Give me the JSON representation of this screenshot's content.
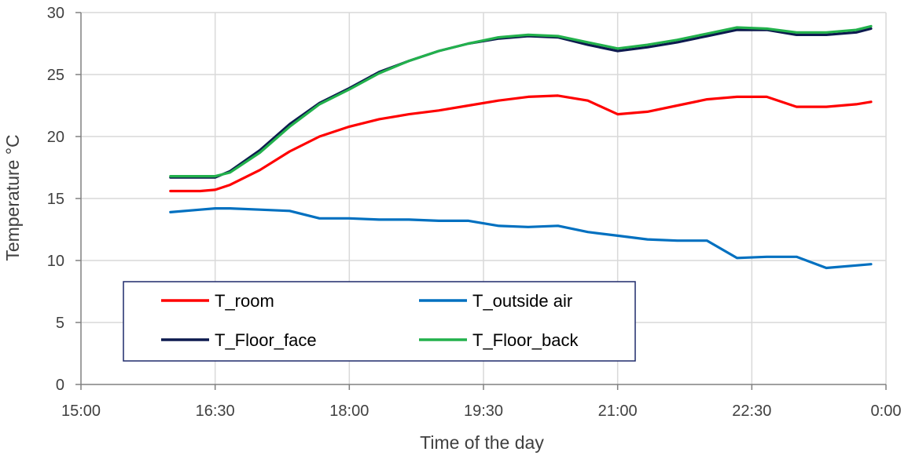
{
  "chart_data": {
    "type": "line",
    "xlabel": "Time of the day",
    "ylabel": "Temperature °C",
    "x_ticks": [
      "15:00",
      "16:30",
      "18:00",
      "19:30",
      "21:00",
      "22:30",
      "0:00"
    ],
    "x_tick_hours": [
      15,
      16.5,
      18,
      19.5,
      21,
      22.5,
      24
    ],
    "xlim": [
      "15:00",
      "0:00"
    ],
    "ylim": [
      0,
      30
    ],
    "y_ticks": [
      0,
      5,
      10,
      15,
      20,
      25,
      30
    ],
    "grid": true,
    "legend": {
      "placement": "bottom-left",
      "columns": 2
    },
    "x": [
      "16:00",
      "16:20",
      "16:30",
      "16:40",
      "17:00",
      "17:20",
      "17:40",
      "18:00",
      "18:20",
      "18:40",
      "19:00",
      "19:20",
      "19:40",
      "20:00",
      "20:20",
      "20:40",
      "21:00",
      "21:20",
      "21:40",
      "22:00",
      "22:20",
      "22:40",
      "23:00",
      "23:20",
      "23:40",
      "23:50"
    ],
    "series": [
      {
        "name": "T_room",
        "color": "#ff0000",
        "values": [
          15.6,
          15.6,
          15.7,
          16.1,
          17.3,
          18.8,
          20.0,
          20.8,
          21.4,
          21.8,
          22.1,
          22.5,
          22.9,
          23.2,
          23.3,
          22.9,
          21.8,
          22.0,
          22.5,
          23.0,
          23.2,
          23.2,
          22.4,
          22.4,
          22.6,
          22.8
        ]
      },
      {
        "name": "T_outside air",
        "color": "#0070c0",
        "values": [
          13.9,
          14.1,
          14.2,
          14.2,
          14.1,
          14.0,
          13.4,
          13.4,
          13.3,
          13.3,
          13.2,
          13.2,
          12.8,
          12.7,
          12.8,
          12.3,
          12.0,
          11.7,
          11.6,
          11.6,
          10.2,
          10.3,
          10.3,
          9.4,
          9.6,
          9.7
        ]
      },
      {
        "name": "T_Floor_face",
        "color": "#0d1a4f",
        "values": [
          16.7,
          16.7,
          16.7,
          17.2,
          18.9,
          21.0,
          22.7,
          23.9,
          25.2,
          26.1,
          26.9,
          27.5,
          27.9,
          28.1,
          28.0,
          27.4,
          26.9,
          27.2,
          27.6,
          28.1,
          28.6,
          28.6,
          28.2,
          28.2,
          28.4,
          28.7
        ]
      },
      {
        "name": "T_Floor_back",
        "color": "#22b14c",
        "values": [
          16.8,
          16.8,
          16.8,
          17.1,
          18.7,
          20.8,
          22.6,
          23.8,
          25.1,
          26.1,
          26.9,
          27.5,
          28.0,
          28.2,
          28.1,
          27.6,
          27.1,
          27.4,
          27.8,
          28.3,
          28.8,
          28.7,
          28.4,
          28.4,
          28.6,
          28.9
        ]
      }
    ]
  }
}
